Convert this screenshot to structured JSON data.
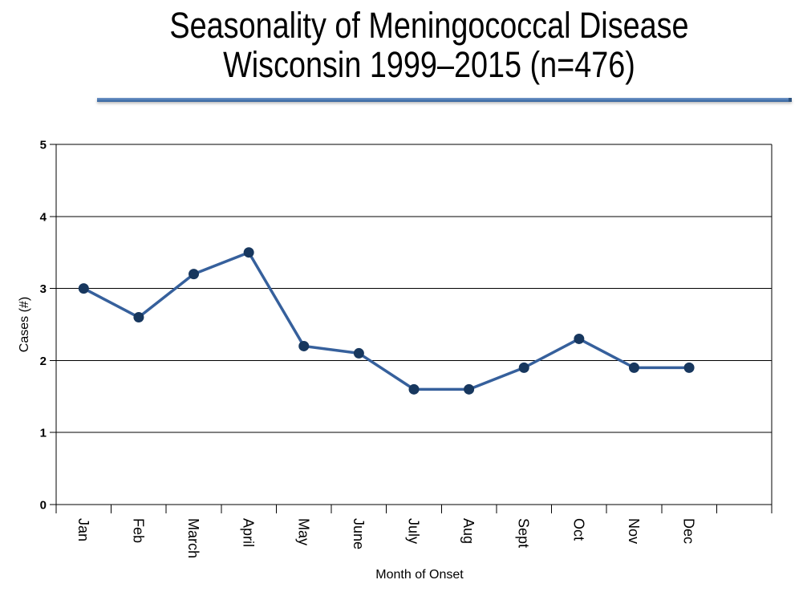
{
  "slide": {
    "title_line1": "Seasonality of Meningococcal Disease",
    "title_line2": "Wisconsin 1999–2015 (n=476)"
  },
  "chart_data": {
    "type": "line",
    "title": "Seasonality of Meningococcal Disease Wisconsin 1999–2015 (n=476)",
    "categories": [
      "Jan",
      "Feb",
      "March",
      "April",
      "May",
      "June",
      "July",
      "Aug",
      "Sept",
      "Oct",
      "Nov",
      "Dec"
    ],
    "values": [
      3.0,
      2.6,
      3.2,
      3.5,
      2.2,
      2.1,
      1.6,
      1.6,
      1.9,
      2.3,
      1.9,
      1.9
    ],
    "xlabel": "Month of Onset",
    "ylabel": "Cases (#)",
    "ylim": [
      0,
      5
    ],
    "yticks": [
      0,
      1,
      2,
      3,
      4,
      5
    ],
    "grid": true,
    "legend_position": "none",
    "marker_style": "filled-circle",
    "colors": {
      "line": "#36609C",
      "marker": "#17375E",
      "axis": "#000000",
      "divider": "#4A77B0"
    }
  }
}
